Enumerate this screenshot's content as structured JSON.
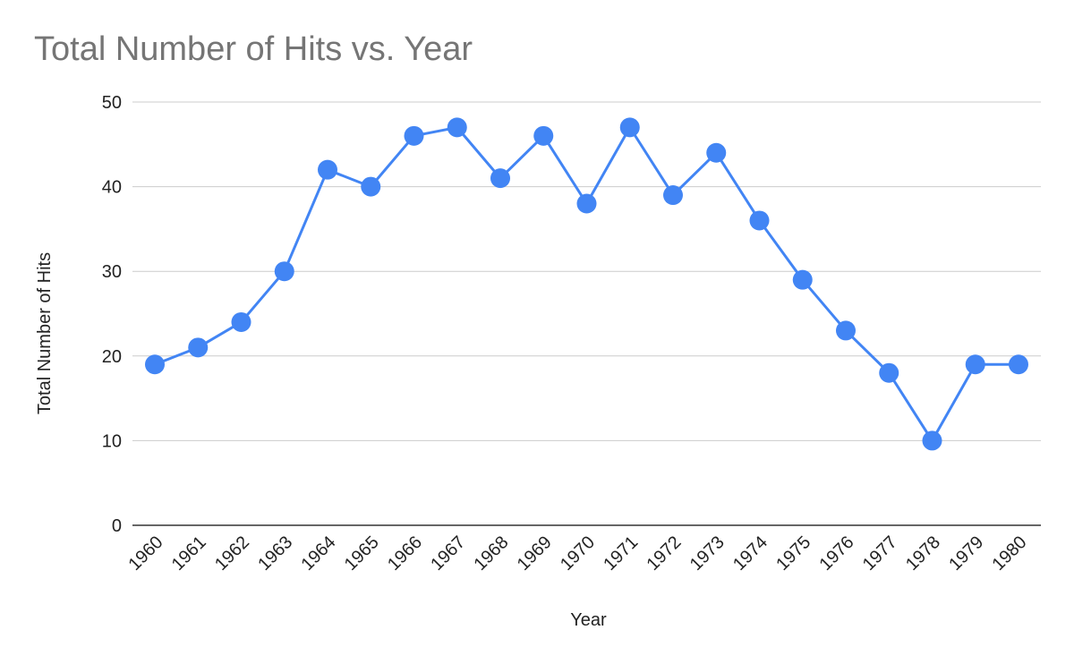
{
  "chart_data": {
    "type": "line",
    "title": "Total Number of Hits vs. Year",
    "xlabel": "Year",
    "ylabel": "Total Number of Hits",
    "categories": [
      "1960",
      "1961",
      "1962",
      "1963",
      "1964",
      "1965",
      "1966",
      "1967",
      "1968",
      "1969",
      "1970",
      "1971",
      "1972",
      "1973",
      "1974",
      "1975",
      "1976",
      "1977",
      "1978",
      "1979",
      "1980"
    ],
    "series": [
      {
        "values": [
          19,
          21,
          24,
          30,
          42,
          40,
          46,
          47,
          41,
          46,
          38,
          47,
          39,
          44,
          36,
          29,
          23,
          18,
          10,
          19,
          19
        ],
        "color": "#4285f4"
      }
    ],
    "ylim": [
      0,
      50
    ],
    "yticks": [
      "0",
      "10",
      "20",
      "30",
      "40",
      "50"
    ],
    "grid": true,
    "legend": "none",
    "colors": {
      "title": "#757575",
      "gridline": "#cccccc",
      "baseline": "#333333",
      "text": "#222222"
    }
  }
}
